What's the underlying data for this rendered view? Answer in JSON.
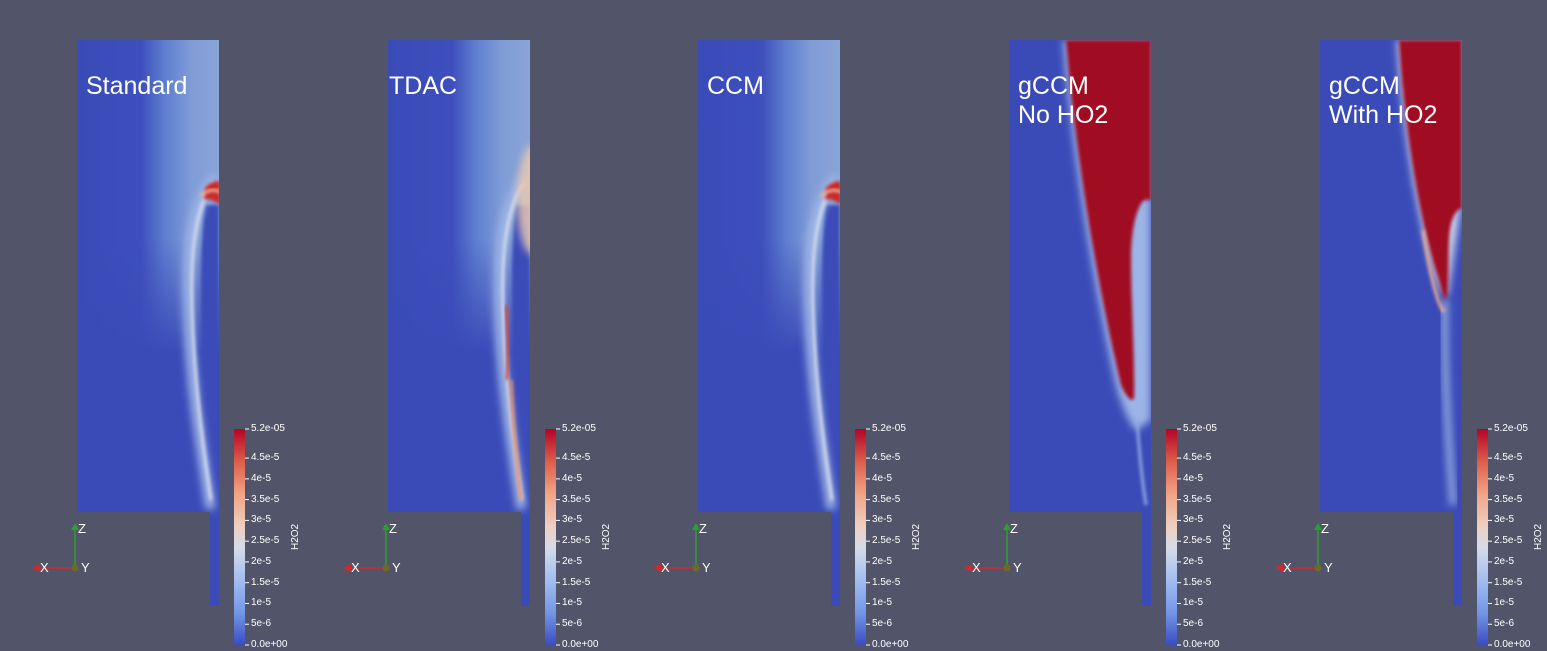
{
  "panels": [
    {
      "title_lines": [
        "Standard"
      ],
      "variant": "standard"
    },
    {
      "title_lines": [
        "TDAC"
      ],
      "variant": "tdac"
    },
    {
      "title_lines": [
        "CCM"
      ],
      "variant": "ccm"
    },
    {
      "title_lines": [
        "gCCM",
        "No HO2"
      ],
      "variant": "gccm_no"
    },
    {
      "title_lines": [
        "gCCM",
        "With HO2"
      ],
      "variant": "gccm_with"
    }
  ],
  "colorbar": {
    "title": "H2O2",
    "ticks": [
      "5.2e-05",
      "4.5e-5",
      "4e-5",
      "3.5e-5",
      "3e-5",
      "2.5e-5",
      "2e-5",
      "1.5e-5",
      "1e-5",
      "5e-6",
      "0.0e+00"
    ],
    "tick_values": [
      5.2e-05,
      4.5e-05,
      4e-05,
      3.5e-05,
      3e-05,
      2.5e-05,
      2e-05,
      1.5e-05,
      1e-05,
      5e-06,
      0
    ],
    "range": [
      0,
      5.2e-05
    ],
    "colors": [
      "#3b4cc0",
      "#dddddd",
      "#b40426"
    ]
  },
  "axes": {
    "x": "X",
    "y": "Y",
    "z": "Z"
  },
  "colors": {
    "background": "#525569",
    "low": "#3b4cc0",
    "high": "#a00823",
    "axis_x": "#d62728",
    "axis_z": "#2ca02c",
    "axis_y": "#c8c800"
  }
}
